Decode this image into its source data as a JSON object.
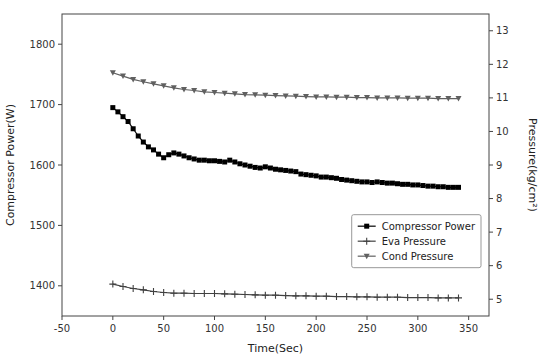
{
  "chart_data": {
    "type": "line",
    "xlabel": "Time(Sec)",
    "ylabel": "Compressor Power(W)",
    "y2label": "Pressure(kg/cm²)",
    "xlim": [
      -50,
      370
    ],
    "xticks": [
      -50,
      0,
      50,
      100,
      150,
      200,
      250,
      300,
      350
    ],
    "ylim": [
      1350,
      1850
    ],
    "yticks": [
      1400,
      1500,
      1600,
      1700,
      1800
    ],
    "y2lim": [
      4.5,
      13.5
    ],
    "y2ticks": [
      5,
      6,
      7,
      8,
      9,
      10,
      11,
      12,
      13
    ],
    "grid": false,
    "legend": "lower right",
    "series": [
      {
        "name": "Compressor Power",
        "color": "#000000",
        "marker": "square",
        "x": [
          0,
          5,
          10,
          15,
          20,
          25,
          30,
          35,
          40,
          45,
          50,
          55,
          60,
          65,
          70,
          75,
          80,
          85,
          90,
          95,
          100,
          105,
          110,
          115,
          120,
          125,
          130,
          135,
          140,
          145,
          150,
          155,
          160,
          165,
          170,
          175,
          180,
          185,
          190,
          195,
          200,
          205,
          210,
          215,
          220,
          225,
          230,
          235,
          240,
          245,
          250,
          255,
          260,
          265,
          270,
          275,
          280,
          285,
          290,
          295,
          300,
          305,
          310,
          315,
          320,
          325,
          330,
          335,
          340
        ],
        "values": [
          1695,
          1688,
          1680,
          1672,
          1660,
          1648,
          1638,
          1630,
          1625,
          1618,
          1612,
          1617,
          1620,
          1618,
          1615,
          1612,
          1610,
          1608,
          1608,
          1607,
          1607,
          1606,
          1605,
          1608,
          1605,
          1602,
          1600,
          1598,
          1596,
          1595,
          1597,
          1595,
          1593,
          1592,
          1591,
          1590,
          1589,
          1585,
          1584,
          1583,
          1582,
          1580,
          1580,
          1579,
          1578,
          1576,
          1575,
          1574,
          1573,
          1572,
          1572,
          1571,
          1572,
          1571,
          1570,
          1570,
          1569,
          1568,
          1568,
          1567,
          1567,
          1566,
          1565,
          1565,
          1564,
          1564,
          1563,
          1563,
          1563
        ]
      },
      {
        "name": "Eva Pressure",
        "color": "#404040",
        "marker": "plus",
        "axis": "y2",
        "x": [
          0,
          10,
          20,
          30,
          40,
          50,
          60,
          70,
          80,
          90,
          100,
          110,
          120,
          130,
          140,
          150,
          160,
          170,
          180,
          190,
          200,
          210,
          220,
          230,
          240,
          250,
          260,
          270,
          280,
          290,
          300,
          310,
          320,
          330,
          340
        ],
        "values": [
          5.45,
          5.38,
          5.32,
          5.28,
          5.23,
          5.2,
          5.18,
          5.18,
          5.17,
          5.17,
          5.17,
          5.16,
          5.15,
          5.14,
          5.13,
          5.12,
          5.12,
          5.11,
          5.1,
          5.1,
          5.09,
          5.09,
          5.08,
          5.08,
          5.07,
          5.07,
          5.06,
          5.06,
          5.06,
          5.05,
          5.05,
          5.05,
          5.04,
          5.04,
          5.04
        ]
      },
      {
        "name": "Cond Pressure",
        "color": "#606060",
        "marker": "triangle_down",
        "axis": "y2",
        "x": [
          0,
          10,
          20,
          30,
          40,
          50,
          60,
          70,
          80,
          90,
          100,
          110,
          120,
          130,
          140,
          150,
          160,
          170,
          180,
          190,
          200,
          210,
          220,
          230,
          240,
          250,
          260,
          270,
          280,
          290,
          300,
          310,
          320,
          330,
          340
        ],
        "values": [
          11.75,
          11.65,
          11.55,
          11.48,
          11.42,
          11.36,
          11.3,
          11.25,
          11.22,
          11.18,
          11.16,
          11.14,
          11.12,
          11.1,
          11.09,
          11.08,
          11.07,
          11.06,
          11.05,
          11.04,
          11.03,
          11.03,
          11.02,
          11.02,
          11.01,
          11.01,
          11.0,
          11.0,
          11.0,
          10.99,
          10.99,
          10.99,
          10.98,
          10.98,
          10.98
        ]
      }
    ]
  }
}
